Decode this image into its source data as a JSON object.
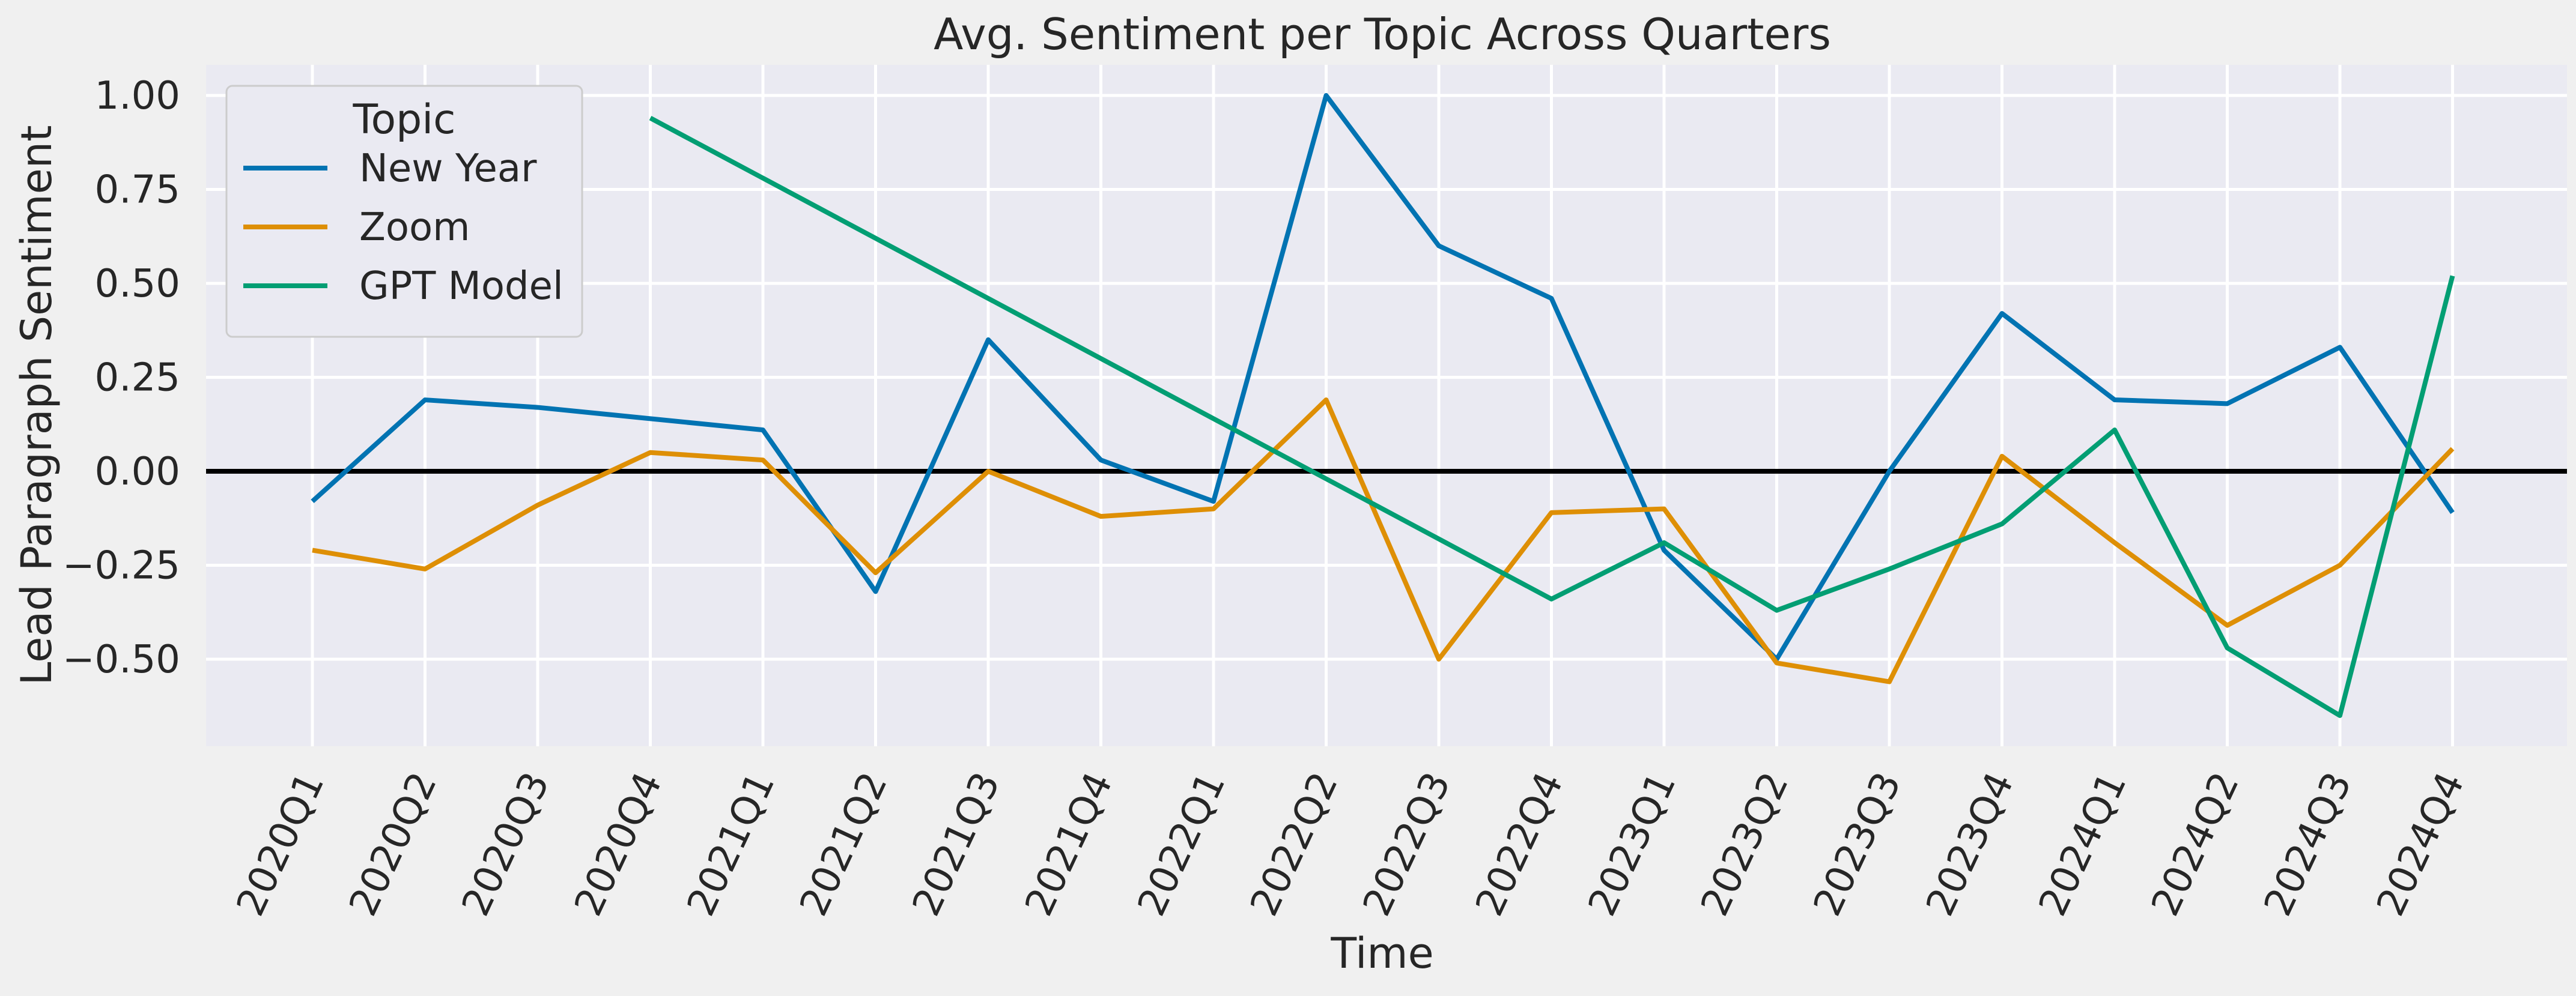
{
  "chart_data": {
    "type": "line",
    "title": "Avg. Sentiment per Topic Across Quarters",
    "xlabel": "Time",
    "ylabel": "Lead Paragraph Sentiment",
    "categories": [
      "2020Q1",
      "2020Q2",
      "2020Q3",
      "2020Q4",
      "2021Q1",
      "2021Q2",
      "2021Q3",
      "2021Q4",
      "2022Q1",
      "2022Q2",
      "2022Q3",
      "2022Q4",
      "2023Q1",
      "2023Q2",
      "2023Q3",
      "2023Q4",
      "2024Q1",
      "2024Q2",
      "2024Q3",
      "2024Q4"
    ],
    "yticks": [
      "1.00",
      "0.75",
      "0.50",
      "0.25",
      "0.00",
      "−0.25",
      "−0.50"
    ],
    "ylim": [
      -0.7,
      1.07
    ],
    "grid": true,
    "legend": {
      "title": "Topic",
      "placement": "top-left"
    },
    "reference_line": {
      "y": 0,
      "color": "#000000"
    },
    "series": [
      {
        "name": "New Year",
        "color": "#0173b2",
        "values": [
          -0.08,
          0.19,
          0.17,
          0.14,
          0.11,
          -0.32,
          0.35,
          0.03,
          -0.08,
          1.0,
          0.6,
          0.46,
          -0.21,
          -0.5,
          0.0,
          0.42,
          0.19,
          0.18,
          0.33,
          -0.11
        ]
      },
      {
        "name": "Zoom",
        "color": "#de8f05",
        "values": [
          -0.21,
          -0.26,
          -0.09,
          0.05,
          0.03,
          -0.27,
          0.0,
          -0.12,
          -0.1,
          0.19,
          -0.5,
          -0.11,
          -0.1,
          -0.51,
          -0.56,
          0.04,
          -0.19,
          -0.41,
          -0.25,
          0.06
        ]
      },
      {
        "name": "GPT Model",
        "color": "#029e73",
        "values": [
          null,
          null,
          null,
          0.94,
          null,
          null,
          null,
          null,
          null,
          null,
          null,
          -0.34,
          -0.19,
          -0.37,
          -0.26,
          -0.14,
          0.11,
          -0.47,
          -0.65,
          0.52
        ]
      }
    ]
  }
}
